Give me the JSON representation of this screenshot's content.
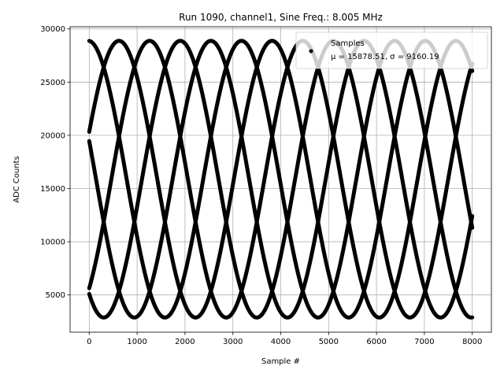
{
  "chart_data": {
    "type": "scatter",
    "title": "Run 1090, channel1, Sine Freq.: 8.005 MHz",
    "xlabel": "Sample #",
    "ylabel": "ADC Counts",
    "xlim": [
      -400,
      8400
    ],
    "ylim": [
      1500,
      30200
    ],
    "xticks": [
      0,
      1000,
      2000,
      3000,
      4000,
      5000,
      6000,
      7000,
      8000
    ],
    "yticks": [
      5000,
      10000,
      15000,
      20000,
      25000,
      30000
    ],
    "grid": true,
    "legend_placement": "top-right",
    "series": [
      {
        "name": "Samples",
        "legend_detail": "μ = 15878.51, σ = 9160.19",
        "color": "#000000",
        "marker": "point",
        "model": {
          "mean": 15878.51,
          "amplitude": 13000,
          "period_samples": 3198,
          "phases_deg": [
            20,
            92,
            164,
            236,
            308
          ]
        },
        "x_range": [
          0,
          8000
        ]
      }
    ]
  }
}
